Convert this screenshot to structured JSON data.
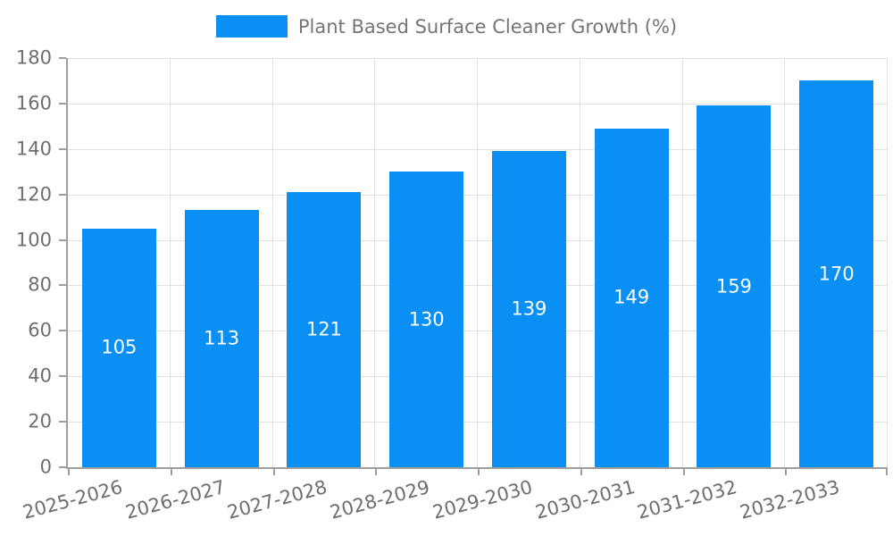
{
  "legend": {
    "label": "Plant Based Surface Cleaner Growth (%)"
  },
  "chart_data": {
    "type": "bar",
    "title": "",
    "xlabel": "",
    "ylabel": "",
    "categories": [
      "2025-2026",
      "2026-2027",
      "2027-2028",
      "2028-2029",
      "2029-2030",
      "2030-2031",
      "2031-2032",
      "2032-2033"
    ],
    "values": [
      105,
      113,
      121,
      130,
      139,
      149,
      159,
      170
    ],
    "series_name": "Plant Based Surface Cleaner Growth (%)",
    "value_labels": [
      "105",
      "113",
      "121",
      "130",
      "139",
      "149",
      "159",
      "170"
    ],
    "value_labels_position": "inside-center",
    "ylim": [
      0,
      180
    ],
    "yticks": [
      0,
      20,
      40,
      60,
      80,
      100,
      120,
      140,
      160,
      180
    ],
    "ytick_labels": [
      "0",
      "20",
      "40",
      "60",
      "80",
      "100",
      "120",
      "140",
      "160",
      "180"
    ],
    "grid": true,
    "legend_position": "top-center",
    "x_label_rotation_deg": -15
  },
  "colors": {
    "bar": "#0A8FF5",
    "grid": "#E1E1E1",
    "axis": "#9E9E9E",
    "tick_text": "#6E6E6E",
    "legend_text": "#757575",
    "value_text": "#FFFFFF",
    "background": "#FFFFFF"
  }
}
